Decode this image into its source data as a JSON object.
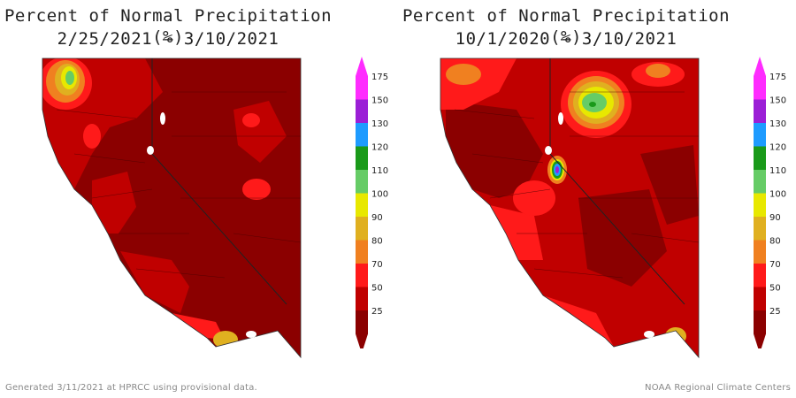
{
  "maps": [
    {
      "title": "Percent of Normal Precipitation (%)",
      "date_range": "2/25/2021 – 3/10/2021",
      "variant": "short"
    },
    {
      "title": "Percent of Normal Precipitation (%)",
      "date_range": "10/1/2020 – 3/10/2021",
      "variant": "long"
    }
  ],
  "legend": {
    "labels": [
      "175",
      "150",
      "130",
      "120",
      "110",
      "100",
      "90",
      "80",
      "70",
      "50",
      "25"
    ],
    "colors": [
      "#ff2cff",
      "#9b1fd6",
      "#1e9bff",
      "#1a9a1a",
      "#66cc66",
      "#e8e800",
      "#e0b020",
      "#f08020",
      "#ff1a1a",
      "#c00000",
      "#8b0000"
    ]
  },
  "footer": {
    "generated": "Generated 3/11/2021 at HPRCC using provisional data.",
    "credit": "NOAA Regional Climate Centers"
  }
}
